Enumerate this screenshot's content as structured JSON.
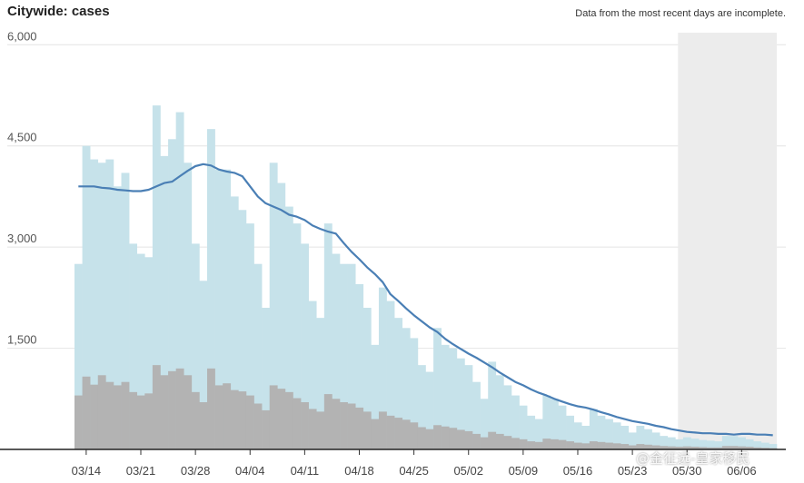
{
  "chart_data": {
    "type": "bar",
    "title": "Citywide: cases",
    "note": "Data from the most recent days are incomplete.",
    "xlabel": "",
    "ylabel": "",
    "ylim": [
      0,
      6300
    ],
    "yticks": [
      1500,
      3000,
      4500,
      6000
    ],
    "ytick_labels": [
      "1,500",
      "3,000",
      "4,500",
      "6,000"
    ],
    "xtick_labels": [
      "03/14",
      "03/21",
      "03/28",
      "04/04",
      "04/11",
      "04/18",
      "04/25",
      "05/02",
      "05/09",
      "05/16",
      "05/23",
      "05/30",
      "06/06"
    ],
    "xtick_day_index": [
      1,
      8,
      15,
      22,
      29,
      36,
      43,
      50,
      57,
      64,
      71,
      78,
      85
    ],
    "grid": true,
    "legend": "none",
    "start_label": "03/13",
    "incomplete_from_day": 82,
    "series": [
      {
        "values": [
          2750,
          4500,
          4300,
          4250,
          4300,
          3900,
          4100,
          3050,
          2900,
          2850,
          5100,
          4350,
          4600,
          5000,
          4250,
          3050,
          2500,
          4750,
          4150,
          4150,
          3750,
          3550,
          3350,
          2750,
          2100,
          4250,
          3950,
          3600,
          3350,
          3050,
          2200,
          1950,
          3350,
          2900,
          2750,
          2750,
          2450,
          2100,
          1550,
          2400,
          2200,
          1950,
          1800,
          1650,
          1250,
          1150,
          1800,
          1550,
          1500,
          1350,
          1250,
          1000,
          750,
          1300,
          1100,
          950,
          800,
          650,
          500,
          450,
          800,
          750,
          650,
          500,
          400,
          350,
          600,
          500,
          450,
          400,
          350,
          250,
          350,
          300,
          250,
          200,
          180,
          150,
          180,
          160,
          140,
          130,
          120,
          200,
          200,
          180,
          150,
          120,
          100,
          80
        ],
        "color": "#c6e2ea"
      },
      {
        "values": [
          800,
          1080,
          960,
          1100,
          1000,
          950,
          1000,
          850,
          800,
          830,
          1250,
          1100,
          1160,
          1200,
          1100,
          850,
          700,
          1200,
          950,
          980,
          880,
          860,
          800,
          680,
          580,
          950,
          900,
          850,
          760,
          700,
          600,
          560,
          820,
          750,
          700,
          680,
          620,
          560,
          450,
          560,
          500,
          470,
          440,
          400,
          330,
          300,
          360,
          340,
          320,
          290,
          270,
          230,
          180,
          260,
          230,
          200,
          170,
          150,
          120,
          110,
          160,
          150,
          140,
          120,
          100,
          90,
          120,
          110,
          100,
          90,
          80,
          60,
          80,
          70,
          60,
          50,
          45,
          40,
          45,
          40,
          35,
          30,
          30,
          50,
          50,
          45,
          40,
          30,
          25,
          20
        ],
        "color": "#b3b3b3"
      },
      {
        "type": "line",
        "values": [
          3900,
          3900,
          3900,
          3880,
          3870,
          3850,
          3840,
          3830,
          3830,
          3850,
          3900,
          3950,
          3970,
          4050,
          4130,
          4200,
          4230,
          4210,
          4150,
          4120,
          4100,
          4050,
          3900,
          3750,
          3650,
          3600,
          3550,
          3480,
          3450,
          3400,
          3320,
          3270,
          3230,
          3200,
          3060,
          2930,
          2820,
          2700,
          2600,
          2480,
          2300,
          2200,
          2090,
          1990,
          1900,
          1810,
          1740,
          1640,
          1560,
          1490,
          1420,
          1360,
          1290,
          1220,
          1140,
          1070,
          1000,
          950,
          890,
          840,
          800,
          750,
          710,
          670,
          640,
          620,
          590,
          550,
          520,
          480,
          450,
          420,
          400,
          380,
          350,
          330,
          300,
          280,
          260,
          250,
          240,
          240,
          230,
          230,
          220,
          230,
          230,
          220,
          220,
          210
        ],
        "color": "#4a7fb5"
      }
    ]
  },
  "watermark": "@金征远-皇家移民"
}
